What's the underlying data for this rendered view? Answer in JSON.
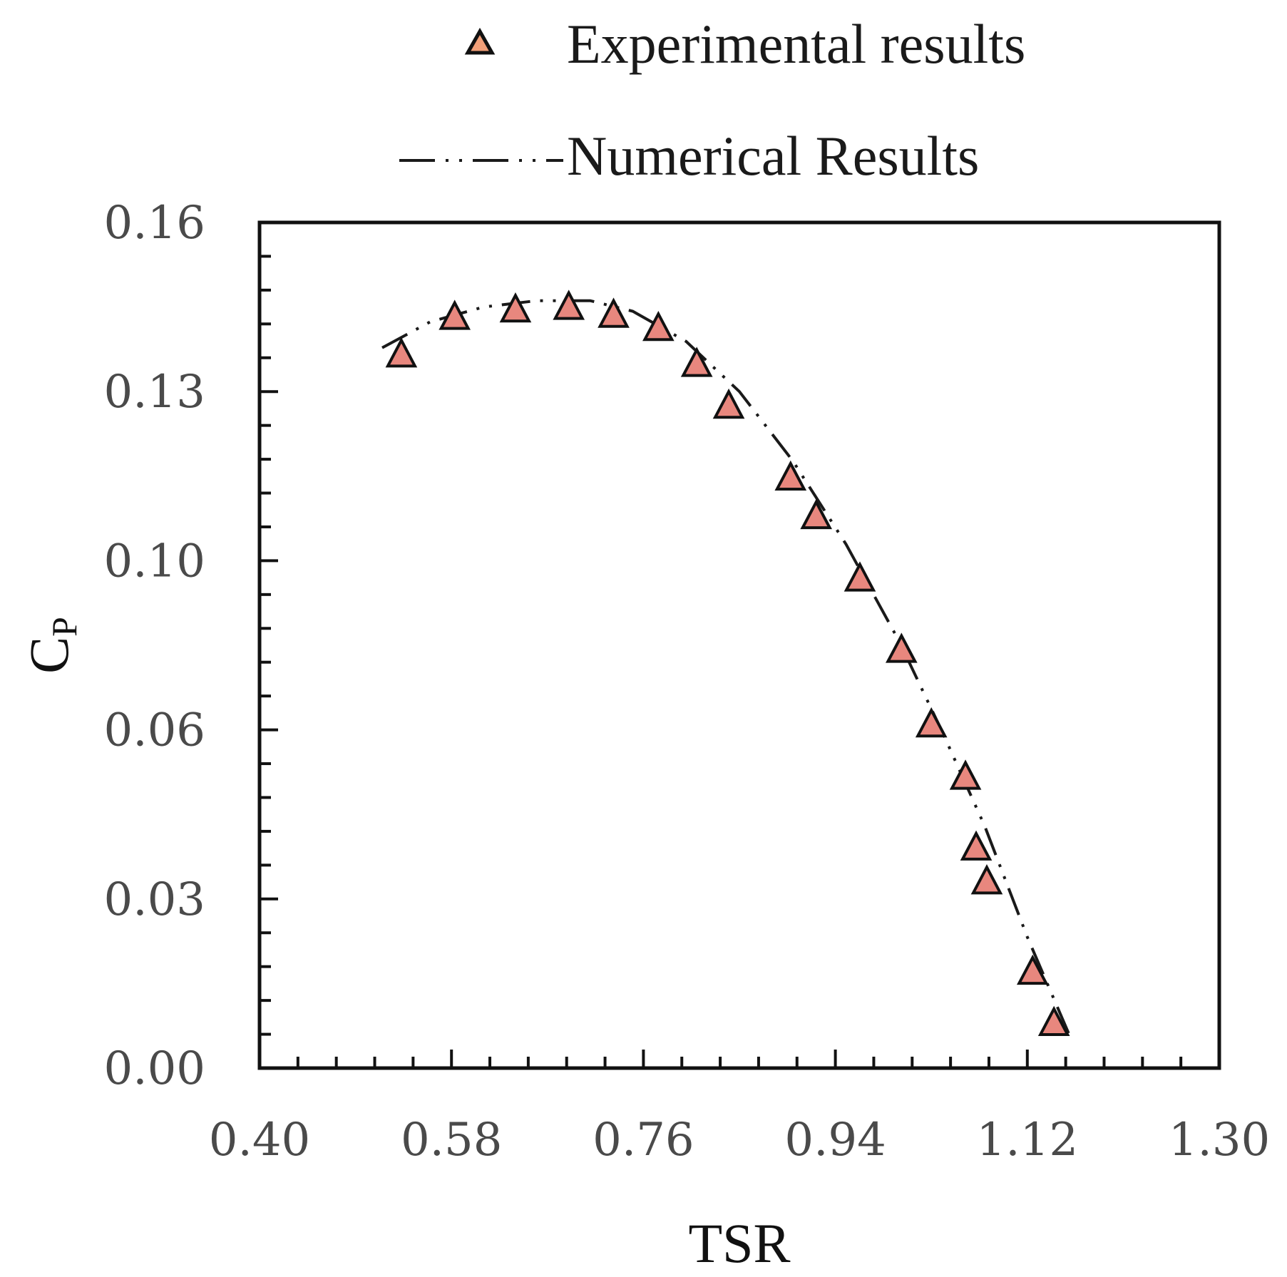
{
  "chart_data": {
    "type": "scatter",
    "xlabel": "TSR",
    "ylabel": "C",
    "ylabel_sub": "P",
    "xlim": [
      0.4,
      1.3
    ],
    "ylim": [
      0.0,
      0.16
    ],
    "x_ticks": [
      "0.40",
      "0.58",
      "0.76",
      "0.94",
      "1.12",
      "1.30"
    ],
    "y_ticks": [
      "0.00",
      "0.03",
      "0.06",
      "0.10",
      "0.13",
      "0.16"
    ],
    "grid": false,
    "legend_position": "top",
    "series": [
      {
        "name": "Experimental results",
        "kind": "markers",
        "marker": "triangle",
        "color": "#e8877e",
        "legend_color": "#f2a079",
        "points": [
          [
            0.533,
            0.135
          ],
          [
            0.583,
            0.1421
          ],
          [
            0.64,
            0.1435
          ],
          [
            0.69,
            0.144
          ],
          [
            0.732,
            0.1425
          ],
          [
            0.774,
            0.14
          ],
          [
            0.81,
            0.1332
          ],
          [
            0.84,
            0.1253
          ],
          [
            0.898,
            0.1117
          ],
          [
            0.922,
            0.1044
          ],
          [
            0.963,
            0.0926
          ],
          [
            1.002,
            0.0791
          ],
          [
            1.03,
            0.065
          ],
          [
            1.062,
            0.0551
          ],
          [
            1.072,
            0.0417
          ],
          [
            1.082,
            0.0353
          ],
          [
            1.125,
            0.0182
          ],
          [
            1.145,
            0.0085
          ]
        ]
      },
      {
        "name": "Numerical Results",
        "kind": "line",
        "dash": "dash-dot-dot",
        "color": "#1a1a1a",
        "points": [
          [
            0.515,
            0.1363
          ],
          [
            0.56,
            0.1412
          ],
          [
            0.61,
            0.144
          ],
          [
            0.66,
            0.1452
          ],
          [
            0.71,
            0.1452
          ],
          [
            0.75,
            0.1432
          ],
          [
            0.8,
            0.1375
          ],
          [
            0.85,
            0.128
          ],
          [
            0.9,
            0.1149
          ],
          [
            0.95,
            0.0991
          ],
          [
            1.0,
            0.0807
          ],
          [
            1.04,
            0.0637
          ],
          [
            1.08,
            0.0458
          ],
          [
            1.12,
            0.0248
          ],
          [
            1.16,
            0.006
          ]
        ]
      }
    ]
  }
}
